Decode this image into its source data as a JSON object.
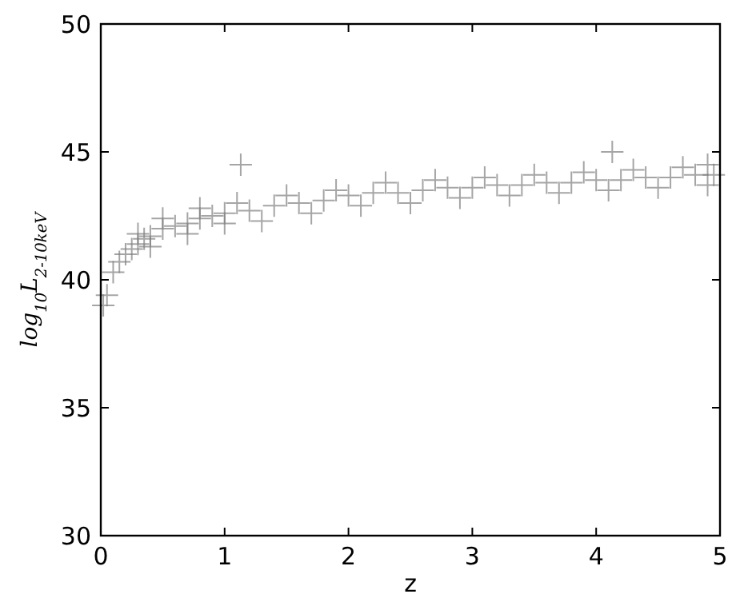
{
  "chart_data": {
    "type": "scatter",
    "xlabel": "z",
    "ylabel": "log$_{10}$L$_{2-10keV}$",
    "xlim": [
      0,
      5
    ],
    "ylim": [
      30,
      50
    ],
    "xticks": [
      0,
      1,
      2,
      3,
      4,
      5
    ],
    "yticks": [
      30,
      35,
      40,
      45,
      50
    ],
    "grid": false,
    "marker": "cross",
    "series": [
      {
        "color": "#7f7f7f",
        "x": [
          0.02,
          0.05,
          0.1,
          0.15,
          0.2,
          0.25,
          0.3,
          0.35,
          0.4,
          0.5,
          0.6,
          0.7,
          0.8,
          0.9,
          1.0,
          1.13,
          1.2,
          1.4,
          1.6,
          1.8,
          2.0,
          2.2,
          2.4,
          2.6,
          2.8,
          3.0,
          3.2,
          3.4,
          3.6,
          3.8,
          4.0,
          4.13,
          4.2,
          4.4,
          4.6,
          4.8,
          4.95,
          0.3,
          0.5,
          0.8,
          1.1,
          1.5,
          1.9,
          2.3,
          2.7,
          3.1,
          3.5,
          3.9,
          4.3,
          4.7,
          4.9,
          0.4,
          0.7,
          1.0,
          1.3,
          1.7,
          2.1,
          2.5,
          2.9,
          3.3,
          3.7,
          4.1,
          4.5,
          4.9
        ],
        "values": [
          39.0,
          39.4,
          40.3,
          40.7,
          41.0,
          41.2,
          41.4,
          41.6,
          41.7,
          42.0,
          42.1,
          42.2,
          42.4,
          42.5,
          42.6,
          44.5,
          42.7,
          42.9,
          43.0,
          43.1,
          43.3,
          43.4,
          43.4,
          43.5,
          43.6,
          43.6,
          43.7,
          43.7,
          43.8,
          43.8,
          43.9,
          45.0,
          43.9,
          44.0,
          44.0,
          44.1,
          44.1,
          41.8,
          42.4,
          42.8,
          43.0,
          43.3,
          43.5,
          43.8,
          43.9,
          44.0,
          44.1,
          44.2,
          44.3,
          44.4,
          44.5,
          41.3,
          41.8,
          42.2,
          42.3,
          42.6,
          42.9,
          43.0,
          43.2,
          43.3,
          43.4,
          43.5,
          43.6,
          43.7
        ]
      }
    ]
  }
}
